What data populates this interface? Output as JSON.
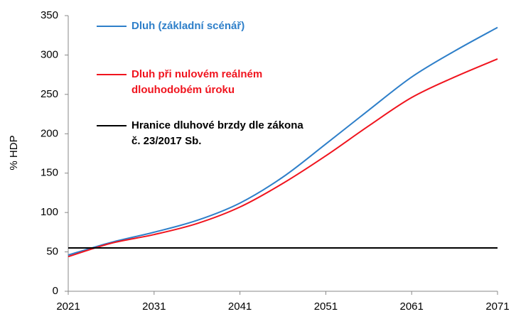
{
  "chart_data": {
    "type": "line",
    "y_label": "% HDP",
    "xlim": [
      2021,
      2071
    ],
    "xticks": [
      2021,
      2031,
      2041,
      2051,
      2061,
      2071
    ],
    "ylim": [
      0,
      350
    ],
    "yticks": [
      0,
      50,
      100,
      150,
      200,
      250,
      300,
      350
    ],
    "grid": false,
    "legend": "upper left",
    "series": [
      {
        "name": "Dluh (základní scénář)",
        "color": "#2e7fc9",
        "x": [
          2021,
          2026,
          2031,
          2036,
          2041,
          2046,
          2051,
          2056,
          2061,
          2066,
          2071
        ],
        "values": [
          46,
          62,
          75,
          90,
          112,
          145,
          187,
          230,
          272,
          305,
          335
        ]
      },
      {
        "name": "Dluh při nulovém reálném dlouhodobém úroku",
        "color": "#f0141e",
        "x": [
          2021,
          2026,
          2031,
          2036,
          2041,
          2046,
          2051,
          2056,
          2061,
          2066,
          2071
        ],
        "values": [
          44,
          61,
          72,
          86,
          107,
          137,
          172,
          210,
          246,
          272,
          295
        ]
      },
      {
        "name": "Hranice dluhové brzdy dle zákona č. 23/2017 Sb.",
        "color": "#000000",
        "x": [
          2021,
          2071
        ],
        "values": [
          55,
          55
        ]
      }
    ]
  }
}
